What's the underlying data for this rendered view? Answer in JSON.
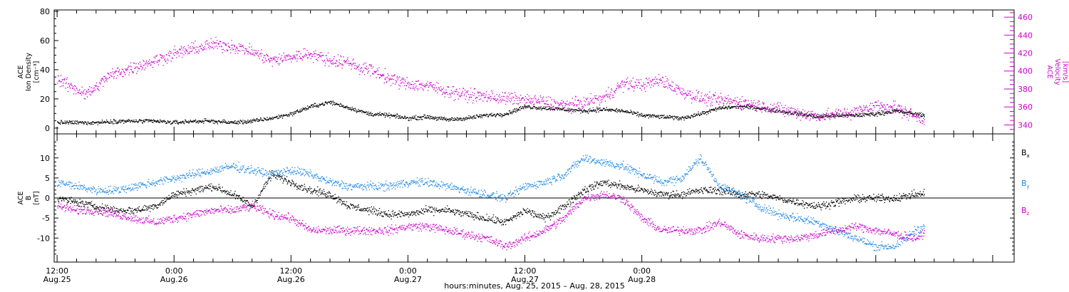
{
  "chart_data": [
    {
      "type": "scatter",
      "panel": "top",
      "ylabel_left": [
        "ACE",
        "Ion Density",
        "[cm⁻³]"
      ],
      "ylabel_right": [
        "ACE",
        "Velocity",
        "[km/s]"
      ],
      "ylim_left": [
        -4,
        81
      ],
      "ylim_right": [
        330,
        468
      ],
      "yticks_left": [
        0,
        20,
        40,
        60,
        80
      ],
      "yticks_right": [
        340,
        360,
        380,
        400,
        420,
        440,
        460
      ],
      "x_range_hours": [
        -0.3,
        98.2
      ],
      "series": [
        {
          "name": "",
          "axis": "left",
          "color": "#000000",
          "noise": 1.2,
          "x": [
            0,
            2,
            4,
            6,
            8,
            10,
            12,
            14,
            16,
            18,
            20,
            22,
            24,
            26,
            28,
            30,
            32,
            34,
            36,
            38,
            40,
            42,
            44,
            46,
            48,
            50,
            52,
            54,
            56,
            58,
            60,
            62,
            64,
            66,
            68,
            70,
            72,
            74,
            76,
            78,
            80,
            82,
            84,
            86,
            88,
            89
          ],
          "y": [
            4,
            4,
            4,
            5,
            5,
            5,
            4,
            5,
            5,
            4,
            5,
            7,
            10,
            15,
            18,
            14,
            10,
            9,
            7,
            8,
            6,
            7,
            9,
            10,
            15,
            14,
            13,
            12,
            13,
            12,
            9,
            8,
            7,
            10,
            14,
            15,
            14,
            12,
            10,
            8,
            9,
            9,
            10,
            12,
            10,
            9
          ]
        },
        {
          "name": "",
          "axis": "right",
          "color": "#cc00cc",
          "noise": 6,
          "x": [
            0,
            1,
            2,
            3,
            4,
            5,
            6,
            8,
            10,
            12,
            14,
            16,
            18,
            20,
            22,
            24,
            26,
            28,
            30,
            31,
            32,
            33,
            34,
            36,
            38,
            40,
            42,
            44,
            46,
            48,
            50,
            52,
            54,
            56,
            58,
            60,
            62,
            64,
            66,
            68,
            70,
            72,
            74,
            76,
            78,
            80,
            82,
            84,
            86,
            88,
            89
          ],
          "y": [
            392,
            385,
            380,
            375,
            382,
            393,
            398,
            405,
            412,
            420,
            425,
            430,
            428,
            422,
            412,
            416,
            420,
            412,
            410,
            404,
            402,
            398,
            392,
            386,
            384,
            378,
            374,
            372,
            370,
            368,
            366,
            362,
            365,
            370,
            386,
            385,
            390,
            378,
            370,
            368,
            366,
            362,
            358,
            354,
            350,
            352,
            355,
            362,
            360,
            350,
            347
          ]
        }
      ]
    },
    {
      "type": "scatter",
      "panel": "bottom",
      "ylabel_left": [
        "ACE",
        "B",
        "[nT]"
      ],
      "ylim": [
        -16,
        16
      ],
      "yticks": [
        -10,
        -5,
        0,
        5,
        10
      ],
      "x_range_hours": [
        -0.3,
        98.2
      ],
      "zero_line": true,
      "legend": [
        "Bx",
        "By",
        "Bz"
      ],
      "legend_position": "right",
      "series": [
        {
          "name": "Bx",
          "color": "#000000",
          "noise": 0.8,
          "x": [
            0,
            2,
            4,
            6,
            8,
            10,
            12,
            14,
            16,
            18,
            20,
            22,
            24,
            26,
            28,
            30,
            32,
            34,
            36,
            38,
            40,
            42,
            44,
            46,
            48,
            50,
            52,
            54,
            56,
            58,
            60,
            62,
            64,
            66,
            68,
            70,
            72,
            74,
            76,
            78,
            80,
            82,
            84,
            86,
            88,
            89
          ],
          "y": [
            0,
            -1,
            -2,
            -3,
            -3,
            -2,
            1,
            2,
            3,
            1,
            -2,
            6,
            4,
            2,
            1,
            -2,
            -3,
            -4,
            -4,
            -3,
            -3,
            -4,
            -5,
            -6,
            -3,
            -5,
            -2,
            2,
            4,
            3,
            2,
            1,
            1,
            2,
            2,
            1,
            1,
            0,
            -1,
            -2,
            -1,
            0,
            0,
            0,
            1,
            1
          ]
        },
        {
          "name": "By",
          "color": "#1e88e5",
          "noise": 0.9,
          "x": [
            0,
            2,
            4,
            6,
            8,
            10,
            12,
            14,
            16,
            18,
            20,
            22,
            24,
            26,
            28,
            30,
            32,
            34,
            36,
            38,
            40,
            42,
            44,
            46,
            48,
            50,
            52,
            54,
            56,
            58,
            60,
            62,
            64,
            66,
            68,
            70,
            72,
            74,
            76,
            78,
            80,
            82,
            84,
            86,
            88,
            89
          ],
          "y": [
            4,
            3,
            2,
            2,
            3,
            4,
            5,
            6,
            7,
            8,
            7,
            6,
            7,
            6,
            4,
            3,
            3,
            3,
            4,
            4,
            3,
            2,
            1,
            0,
            3,
            4,
            6,
            10,
            9,
            8,
            6,
            4,
            5,
            10,
            3,
            1,
            -2,
            -4,
            -5,
            -6,
            -8,
            -10,
            -12,
            -12,
            -8,
            -7
          ]
        },
        {
          "name": "Bz",
          "color": "#cc00cc",
          "noise": 0.9,
          "x": [
            0,
            2,
            4,
            6,
            8,
            10,
            12,
            14,
            16,
            18,
            20,
            22,
            24,
            26,
            28,
            30,
            32,
            34,
            36,
            38,
            40,
            42,
            44,
            46,
            48,
            50,
            52,
            54,
            56,
            58,
            60,
            62,
            64,
            66,
            68,
            70,
            72,
            74,
            76,
            78,
            80,
            82,
            84,
            86,
            88,
            89
          ],
          "y": [
            -2,
            -3,
            -3,
            -4,
            -5,
            -6,
            -5,
            -4,
            -3,
            -3,
            -2,
            -4,
            -5,
            -8,
            -8,
            -8,
            -8,
            -8,
            -7,
            -7,
            -8,
            -9,
            -10,
            -12,
            -10,
            -8,
            -5,
            0,
            1,
            0,
            -5,
            -8,
            -8,
            -8,
            -6,
            -9,
            -10,
            -10,
            -10,
            -9,
            -8,
            -7,
            -8,
            -9,
            -10,
            -9
          ]
        }
      ]
    }
  ],
  "x_axis": {
    "ticks": [
      {
        "h": 0,
        "time": "12:00",
        "date": "Aug.25"
      },
      {
        "h": 12,
        "time": "0:00",
        "date": "Aug.26"
      },
      {
        "h": 24,
        "time": "12:00",
        "date": "Aug.26"
      },
      {
        "h": 36,
        "time": "0:00",
        "date": "Aug.27"
      },
      {
        "h": 48,
        "time": "12:00",
        "date": "Aug.27"
      },
      {
        "h": 60,
        "time": "0:00",
        "date": "Aug.28"
      }
    ],
    "minor_step_hours": 2,
    "major_step_hours": 12,
    "label": "hours:minutes, Aug. 25, 2015 – Aug. 28, 2015"
  },
  "colors": {
    "frame": "#000000",
    "magenta": "#cc00cc",
    "blue": "#1e88e5"
  }
}
